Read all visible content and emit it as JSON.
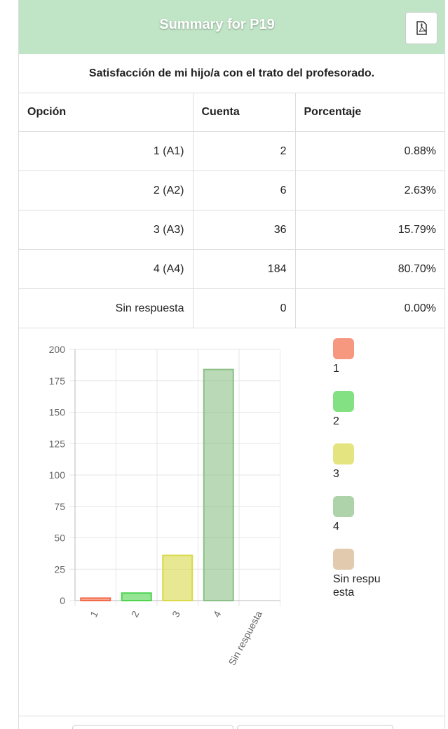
{
  "header": {
    "title": "Summary for P19"
  },
  "question": "Satisfacción de mi hijo/a con el trato del profesorado.",
  "table": {
    "columns": [
      "Opción",
      "Cuenta",
      "Porcentaje"
    ],
    "rows": [
      [
        "1 (A1)",
        "2",
        "0.88%"
      ],
      [
        "2 (A2)",
        "6",
        "2.63%"
      ],
      [
        "3 (A3)",
        "36",
        "15.79%"
      ],
      [
        "4 (A4)",
        "184",
        "80.70%"
      ],
      [
        "Sin respuesta",
        "0",
        "0.00%"
      ]
    ]
  },
  "chart_data": {
    "type": "bar",
    "categories": [
      "1",
      "2",
      "3",
      "4",
      "Sin respuesta"
    ],
    "values": [
      2,
      6,
      36,
      184,
      0
    ],
    "colors": [
      "#f26b4a",
      "#4fd44f",
      "#d9d94a",
      "#8cbf86",
      "#d4b48c"
    ],
    "ylim": [
      0,
      200
    ],
    "yticks": [
      0,
      25,
      50,
      75,
      100,
      125,
      150,
      175,
      200
    ],
    "grid": true,
    "legend": "right"
  }
}
